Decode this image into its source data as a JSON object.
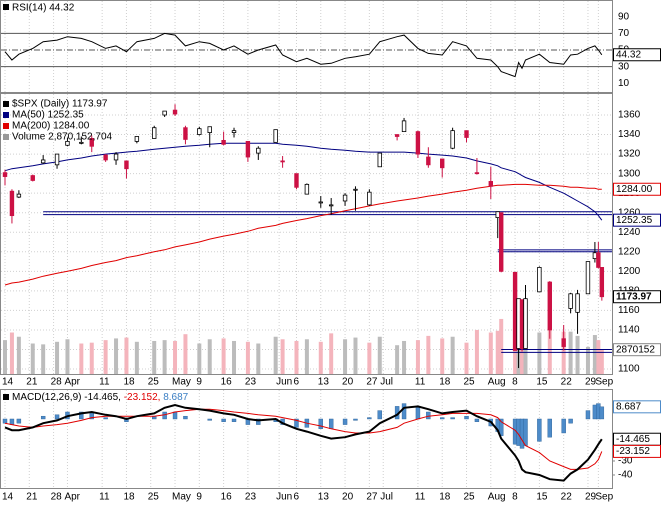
{
  "chart_data": {
    "type": "candlestick",
    "x": [
      "Mar 14",
      "Mar 16",
      "Mar 18",
      "Mar 22",
      "Mar 25",
      "Mar 29",
      "Apr 1",
      "Apr 5",
      "Apr 8",
      "Apr 12",
      "Apr 15",
      "Apr 18",
      "Apr 21",
      "Apr 26",
      "Apr 29",
      "May 2",
      "May 5",
      "May 9",
      "May 12",
      "May 16",
      "May 19",
      "May 23",
      "May 26",
      "May 31",
      "Jun 2",
      "Jun 6",
      "Jun 9",
      "Jun 13",
      "Jun 16",
      "Jun 20",
      "Jun 23",
      "Jun 27",
      "Jun 30",
      "Jul 5",
      "Jul 7",
      "Jul 11",
      "Jul 14",
      "Jul 18",
      "Jul 21",
      "Jul 25",
      "Jul 28",
      "Aug 1",
      "Aug 3",
      "Aug 4",
      "Aug 8",
      "Aug 9",
      "Aug 10",
      "Aug 11",
      "Aug 15",
      "Aug 18",
      "Aug 22",
      "Aug 24",
      "Aug 26",
      "Aug 29",
      "Aug 31",
      "Sep 1",
      "Sep 2"
    ],
    "open": [
      1301,
      1282,
      1276,
      1298,
      1311,
      1309,
      1329,
      1332,
      1336,
      1319,
      1314,
      1313,
      1333,
      1336,
      1360,
      1365,
      1347,
      1340,
      1342,
      1334,
      1342,
      1333,
      1321,
      1332,
      1313,
      1300,
      1279,
      1271,
      1268,
      1272,
      1283,
      1268,
      1307,
      1340,
      1343,
      1343,
      1317,
      1315,
      1326,
      1344,
      1301,
      1292,
      1255,
      1260,
      1199,
      1121,
      1171,
      1121,
      1179,
      1189,
      1131,
      1162,
      1158,
      1177,
      1213,
      1219,
      1204
    ],
    "high": [
      1304,
      1284,
      1283,
      1299,
      1319,
      1320,
      1337,
      1338,
      1339,
      1320,
      1322,
      1313,
      1338,
      1349,
      1364,
      1371,
      1349,
      1348,
      1348,
      1343,
      1347,
      1333,
      1328,
      1345,
      1318,
      1300,
      1290,
      1277,
      1275,
      1280,
      1287,
      1284,
      1321,
      1340,
      1357,
      1344,
      1327,
      1315,
      1347,
      1344,
      1316,
      1307,
      1261,
      1260,
      1199,
      1172,
      1171,
      1186,
      1205,
      1190,
      1145,
      1178,
      1181,
      1210,
      1230,
      1230,
      1204
    ],
    "low": [
      1288,
      1249,
      1275,
      1292,
      1310,
      1305,
      1328,
      1330,
      1322,
      1312,
      1309,
      1295,
      1331,
      1336,
      1358,
      1359,
      1330,
      1339,
      1327,
      1329,
      1337,
      1312,
      1314,
      1332,
      1306,
      1284,
      1279,
      1265,
      1258,
      1267,
      1262,
      1267,
      1307,
      1334,
      1343,
      1316,
      1306,
      1296,
      1325,
      1332,
      1299,
      1274,
      1234,
      1199,
      1119,
      1101,
      1118,
      1121,
      1179,
      1131,
      1119,
      1157,
      1136,
      1177,
      1209,
      1203,
      1170
    ],
    "close": [
      1297,
      1257,
      1279,
      1293,
      1314,
      1320,
      1333,
      1332,
      1328,
      1314,
      1320,
      1305,
      1338,
      1347,
      1364,
      1361,
      1335,
      1346,
      1348,
      1330,
      1344,
      1317,
      1326,
      1345,
      1312,
      1286,
      1289,
      1271,
      1268,
      1278,
      1284,
      1281,
      1321,
      1338,
      1354,
      1320,
      1309,
      1306,
      1344,
      1337,
      1300,
      1287,
      1261,
      1200,
      1119,
      1172,
      1121,
      1172,
      1204,
      1140,
      1123,
      1177,
      1177,
      1210,
      1219,
      1204,
      1174
    ],
    "close_label": "1173.97",
    "up_color": "#000000",
    "down_color": "#cc1144",
    "ylim": [
      1094.9,
      1381.5
    ],
    "yticks": [
      1100,
      1120,
      1140,
      1160,
      1180,
      1200,
      1220,
      1240,
      1260,
      1280,
      1300,
      1320,
      1340,
      1360
    ],
    "grid": true,
    "xticks": [
      {
        "value": "Mar 14",
        "label": "14"
      },
      {
        "value": "Mar 21",
        "label": "21"
      },
      {
        "value": "Mar 28",
        "label": "28"
      },
      {
        "value": "Apr 1",
        "label": "Apr"
      },
      {
        "value": "Apr 11",
        "label": "11"
      },
      {
        "value": "Apr 18",
        "label": "18"
      },
      {
        "value": "Apr 25",
        "label": "25"
      },
      {
        "value": "May 2",
        "label": "May"
      },
      {
        "value": "May 9",
        "label": "9"
      },
      {
        "value": "May 16",
        "label": "16"
      },
      {
        "value": "May 23",
        "label": "23"
      },
      {
        "value": "Jun 1",
        "label": "Jun"
      },
      {
        "value": "Jun 6",
        "label": "6"
      },
      {
        "value": "Jun 13",
        "label": "13"
      },
      {
        "value": "Jun 20",
        "label": "20"
      },
      {
        "value": "Jun 27",
        "label": "27"
      },
      {
        "value": "Jul 1",
        "label": "Jul"
      },
      {
        "value": "Jul 11",
        "label": "11"
      },
      {
        "value": "Jul 18",
        "label": "18"
      },
      {
        "value": "Jul 25",
        "label": "25"
      },
      {
        "value": "Aug 1",
        "label": "Aug"
      },
      {
        "value": "Aug 8",
        "label": "8"
      },
      {
        "value": "Aug 15",
        "label": "15"
      },
      {
        "value": "Aug 22",
        "label": "22"
      },
      {
        "value": "Aug 29",
        "label": "29"
      },
      {
        "value": "Sep 1",
        "label": "Sep"
      }
    ],
    "legend": [
      {
        "text": "$SPX (Daily) 1173.97",
        "color": "#000000"
      },
      {
        "text": "MA(50) 1252.35",
        "color": "#000080"
      },
      {
        "text": "MA(200) 1284.00",
        "color": "#e00000"
      },
      {
        "text": "Volume 2,870,152,704",
        "color": "#999999"
      }
    ],
    "volume": {
      "values": [
        4000000000.0,
        4900000000.0,
        4400000000.0,
        3600000000.0,
        3500000000.0,
        3800000000.0,
        4100000000.0,
        3600000000.0,
        3700000000.0,
        4000000000.0,
        4200000000.0,
        4300000000.0,
        3800000000.0,
        3900000000.0,
        4000000000.0,
        3900000000.0,
        4700000000.0,
        3600000000.0,
        4100000000.0,
        4200000000.0,
        3900000000.0,
        3800000000.0,
        3600000000.0,
        4400000000.0,
        4100000000.0,
        3900000000.0,
        4100000000.0,
        3800000000.0,
        4800000000.0,
        4100000000.0,
        4300000000.0,
        3700000000.0,
        4400000000.0,
        3400000000.0,
        3900000000.0,
        4000000000.0,
        4500000000.0,
        4200000000.0,
        4400000000.0,
        3700000000.0,
        5200000000.0,
        4900000000.0,
        5100000000.0,
        6500000000.0,
        9000000000.0,
        7700000000.0,
        7300000000.0,
        6600000000.0,
        4900000000.0,
        5500000000.0,
        5000000000.0,
        5000000000.0,
        4500000000.0,
        3200000000.0,
        4600000000.0,
        4000000000.0,
        2870152704
      ],
      "vlim": [
        0,
        33060000000
      ],
      "up_color": "#bcbcbc",
      "down_color": "#f4b4bc",
      "value_label": "2870152",
      "label_color": "#888888"
    },
    "overlays": [
      {
        "type": "line",
        "color": "#000080",
        "value_label": "1252.35",
        "values": [
          1303,
          1305,
          1306,
          1308,
          1310,
          1312,
          1314,
          1316,
          1318,
          1320,
          1321,
          1322,
          1323,
          1325,
          1326,
          1327,
          1328,
          1329,
          1330,
          1331,
          1331,
          1331,
          1331,
          1331,
          1330,
          1329,
          1328,
          1326,
          1325,
          1324,
          1323,
          1322,
          1322,
          1322,
          1322,
          1321,
          1320,
          1319,
          1318,
          1316,
          1313,
          1310,
          1308,
          1306,
          1302,
          1300,
          1298,
          1296,
          1291,
          1286,
          1280,
          1276,
          1272,
          1266,
          1261,
          1257,
          1252.35
        ]
      },
      {
        "type": "line",
        "color": "#e00000",
        "value_label": "1284.00",
        "values": [
          1186,
          1188,
          1189,
          1192,
          1195,
          1198,
          1200,
          1203,
          1206,
          1209,
          1211,
          1214,
          1216,
          1220,
          1222,
          1225,
          1227,
          1230,
          1233,
          1236,
          1238,
          1241,
          1244,
          1247,
          1249,
          1252,
          1254,
          1257,
          1259,
          1262,
          1264,
          1267,
          1269,
          1272,
          1273,
          1275,
          1277,
          1279,
          1281,
          1283,
          1285,
          1287,
          1288,
          1288,
          1289,
          1289,
          1289,
          1289,
          1288,
          1288,
          1287,
          1286,
          1286,
          1285,
          1285,
          1284,
          1284
        ]
      }
    ],
    "hlines": {
      "color": "#000080",
      "values": [
        1261,
        1258,
        1222,
        1220,
        1120,
        1117
      ],
      "from": [
        "Mar 25",
        "Mar 25",
        "Aug 3",
        "Aug 3",
        "Aug 4",
        "Aug 4"
      ]
    },
    "rsi": {
      "type": "line",
      "title": "RSI(14) 44.32",
      "color": "#000000",
      "value_label": "44.32",
      "values": [
        48,
        38,
        45,
        52,
        60,
        62,
        66,
        64,
        60,
        52,
        55,
        48,
        60,
        64,
        70,
        68,
        55,
        60,
        58,
        50,
        55,
        45,
        50,
        56,
        44,
        36,
        40,
        33,
        34,
        40,
        42,
        45,
        60,
        66,
        68,
        52,
        46,
        44,
        60,
        55,
        40,
        38,
        30,
        24,
        18,
        35,
        28,
        38,
        45,
        35,
        33,
        44,
        45,
        52,
        55,
        50,
        44.32
      ],
      "ylim": [
        -0.5,
        109
      ],
      "yticks": [
        10,
        30,
        50,
        70,
        90
      ],
      "levels": [
        70,
        50,
        30
      ]
    },
    "macd": {
      "type": "macd",
      "legend": [
        {
          "text": "MACD(12,26,9) -14.465,",
          "color": "#000000"
        },
        {
          "text": " -23.152,",
          "color": "#e00000"
        },
        {
          "text": " 8.687",
          "color": "#3b7fc4"
        }
      ],
      "macd": {
        "color": "#000000",
        "value_label": "-14.465",
        "values": [
          -6,
          -8,
          -8,
          -6,
          -3,
          -1,
          2,
          4,
          5,
          3,
          2,
          0,
          2,
          4,
          8,
          10,
          8,
          7,
          6,
          4,
          3,
          0,
          -1,
          0,
          -3,
          -7,
          -9,
          -12,
          -14,
          -13,
          -11,
          -9,
          -3,
          3,
          8,
          9,
          7,
          4,
          5,
          6,
          2,
          -2,
          -8,
          -14,
          -26,
          -30,
          -36,
          -38,
          -40,
          -43,
          -44,
          -39,
          -36,
          -29,
          -22,
          -18,
          -14.465
        ]
      },
      "signal": {
        "color": "#e00000",
        "value_label": "-23.152",
        "values": [
          -3,
          -4,
          -5,
          -6,
          -5,
          -4,
          -3,
          -1,
          1,
          2,
          2,
          2,
          2,
          2,
          3,
          5,
          6,
          7,
          7,
          6,
          5,
          4,
          3,
          2,
          1,
          -1,
          -3,
          -5,
          -7,
          -9,
          -10,
          -10,
          -9,
          -6,
          -3,
          0,
          2,
          3,
          4,
          4,
          4,
          3,
          1,
          -2,
          -8,
          -11,
          -15,
          -19,
          -24,
          -30,
          -34,
          -36,
          -36,
          -35,
          -32,
          -29,
          -23.152
        ]
      },
      "histogram": {
        "color": "#4d8bc9",
        "value_label": "8.687",
        "values": [
          -3,
          -4,
          -3,
          0,
          2,
          3,
          5,
          5,
          4,
          1,
          0,
          -2,
          0,
          2,
          5,
          5,
          2,
          0,
          -1,
          -2,
          -2,
          -4,
          -4,
          -2,
          -4,
          -6,
          -6,
          -7,
          -7,
          -4,
          -1,
          1,
          6,
          9,
          11,
          9,
          5,
          1,
          1,
          2,
          -2,
          -5,
          -9,
          -12,
          -18,
          -19,
          -21,
          -19,
          -16,
          -13,
          -10,
          -3,
          0,
          6,
          10,
          11,
          8.687
        ]
      },
      "ylim": [
        -49.3,
        20.7
      ],
      "yticks": [
        -30,
        -40
      ]
    }
  }
}
